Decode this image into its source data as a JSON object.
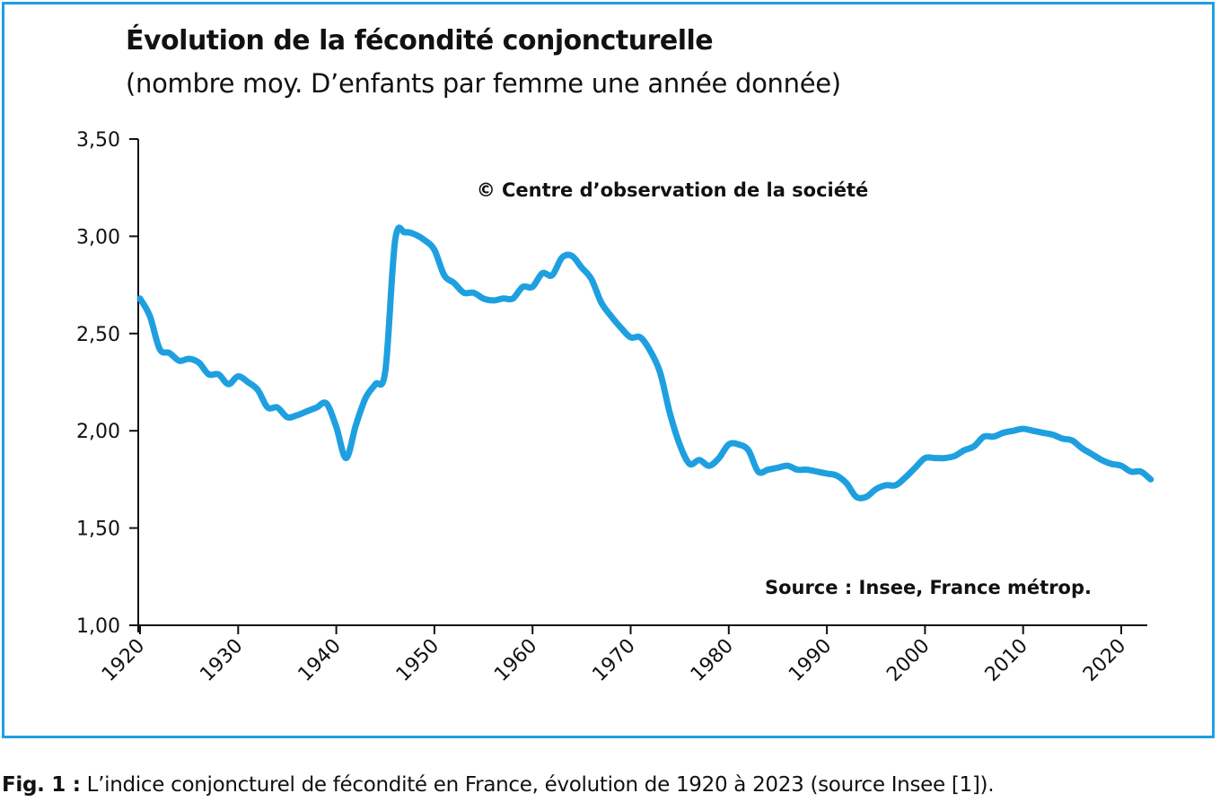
{
  "chart_data": {
    "type": "line",
    "title": "Évolution de la fécondité conjoncturelle",
    "subtitle": "(nombre moy. D’enfants par femme une année donnée)",
    "xlabel": "",
    "ylabel": "",
    "xlim": [
      1920,
      2023
    ],
    "ylim": [
      1.0,
      3.5
    ],
    "y_ticks": [
      "1,00",
      "1,50",
      "2,00",
      "2,50",
      "3,00",
      "3,50"
    ],
    "x_ticks": [
      "1920",
      "1930",
      "1940",
      "1950",
      "1960",
      "1970",
      "1980",
      "1990",
      "2000",
      "2010",
      "2020"
    ],
    "grid": false,
    "line_color": "#1ea0e0",
    "annotations": [
      "© Centre d’observation de la société",
      "Source : Insee, France métrop."
    ],
    "x": [
      1920,
      1921,
      1922,
      1923,
      1924,
      1925,
      1926,
      1927,
      1928,
      1929,
      1930,
      1931,
      1932,
      1933,
      1934,
      1935,
      1936,
      1937,
      1938,
      1939,
      1940,
      1941,
      1942,
      1943,
      1944,
      1945,
      1946,
      1947,
      1948,
      1949,
      1950,
      1951,
      1952,
      1953,
      1954,
      1955,
      1956,
      1957,
      1958,
      1959,
      1960,
      1961,
      1962,
      1963,
      1964,
      1965,
      1966,
      1967,
      1968,
      1969,
      1970,
      1971,
      1972,
      1973,
      1974,
      1975,
      1976,
      1977,
      1978,
      1979,
      1980,
      1981,
      1982,
      1983,
      1984,
      1985,
      1986,
      1987,
      1988,
      1989,
      1990,
      1991,
      1992,
      1993,
      1994,
      1995,
      1996,
      1997,
      1998,
      1999,
      2000,
      2001,
      2002,
      2003,
      2004,
      2005,
      2006,
      2007,
      2008,
      2009,
      2010,
      2011,
      2012,
      2013,
      2014,
      2015,
      2016,
      2017,
      2018,
      2019,
      2020,
      2021,
      2022,
      2023
    ],
    "values": [
      2.68,
      2.59,
      2.42,
      2.4,
      2.36,
      2.37,
      2.35,
      2.29,
      2.29,
      2.24,
      2.28,
      2.25,
      2.21,
      2.12,
      2.12,
      2.07,
      2.08,
      2.1,
      2.12,
      2.14,
      2.02,
      1.86,
      2.03,
      2.17,
      2.24,
      2.31,
      2.98,
      3.02,
      3.01,
      2.98,
      2.93,
      2.8,
      2.76,
      2.71,
      2.71,
      2.68,
      2.67,
      2.68,
      2.68,
      2.74,
      2.74,
      2.81,
      2.8,
      2.89,
      2.9,
      2.84,
      2.78,
      2.66,
      2.59,
      2.53,
      2.48,
      2.48,
      2.41,
      2.3,
      2.09,
      1.93,
      1.83,
      1.85,
      1.82,
      1.86,
      1.93,
      1.93,
      1.9,
      1.79,
      1.8,
      1.81,
      1.82,
      1.8,
      1.8,
      1.79,
      1.78,
      1.77,
      1.73,
      1.66,
      1.66,
      1.7,
      1.72,
      1.72,
      1.76,
      1.81,
      1.86,
      1.86,
      1.86,
      1.87,
      1.9,
      1.92,
      1.97,
      1.97,
      1.99,
      2.0,
      2.01,
      2.0,
      1.99,
      1.98,
      1.96,
      1.95,
      1.91,
      1.88,
      1.85,
      1.83,
      1.82,
      1.79,
      1.79,
      1.75
    ]
  },
  "caption": {
    "label": "Fig. 1 :",
    "text": " L’indice conjoncturel de fécondité en France, évolution de 1920 à 2023 (source Insee [1])."
  }
}
